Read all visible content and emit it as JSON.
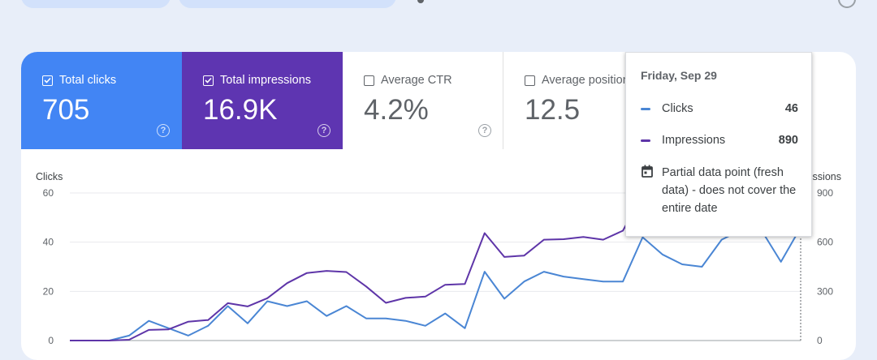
{
  "metrics": [
    {
      "label": "Total clicks",
      "value": "705",
      "checked": true,
      "color": "#4285f4"
    },
    {
      "label": "Total impressions",
      "value": "16.9K",
      "checked": true,
      "color": "#5e35b1"
    },
    {
      "label": "Average CTR",
      "value": "4.2%",
      "checked": false
    },
    {
      "label": "Average position",
      "value": "12.5",
      "checked": false
    }
  ],
  "tooltip": {
    "date": "Friday, Sep 29",
    "clicks_label": "Clicks",
    "clicks_value": "46",
    "impressions_label": "Impressions",
    "impressions_value": "890",
    "note": "Partial data point (fresh data) - does not cover the entire date"
  },
  "chart_data": {
    "type": "line",
    "yaxis_left": {
      "label": "Clicks",
      "ticks": [
        "0",
        "20",
        "40",
        "60"
      ],
      "range": [
        0,
        60
      ]
    },
    "yaxis_right": {
      "label": "Impressions",
      "ticks": [
        "0",
        "300",
        "600",
        "900"
      ],
      "range": [
        0,
        900
      ]
    },
    "grid": true,
    "series": [
      {
        "name": "Clicks",
        "axis": "left",
        "color": "#4a86d4",
        "values": [
          0,
          0,
          0,
          2,
          8,
          5,
          2,
          6,
          14,
          7,
          16,
          14,
          16,
          10,
          14,
          9,
          9,
          8,
          6,
          11,
          5,
          28,
          17,
          24,
          28,
          26,
          25,
          24,
          24,
          42,
          35,
          31,
          30,
          41,
          45,
          45,
          32,
          46
        ]
      },
      {
        "name": "Impressions",
        "axis": "right",
        "color": "#5e35a8",
        "values": [
          0,
          0,
          0,
          5,
          65,
          68,
          115,
          125,
          228,
          208,
          258,
          350,
          412,
          425,
          418,
          330,
          230,
          260,
          268,
          340,
          345,
          655,
          510,
          518,
          615,
          618,
          632,
          615,
          670,
          890,
          783,
          788,
          785,
          825,
          900,
          850,
          870,
          890
        ]
      }
    ]
  }
}
